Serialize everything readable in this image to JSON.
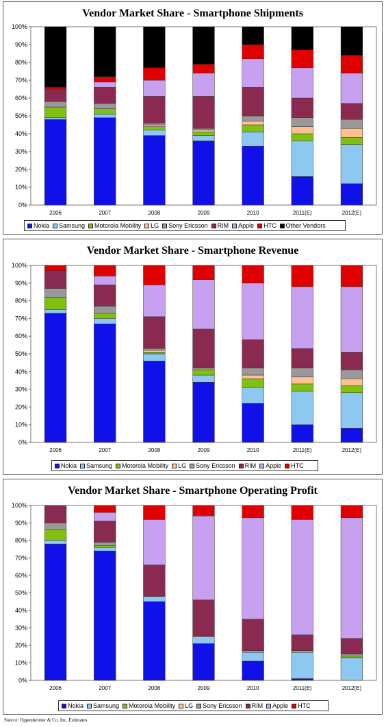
{
  "colors": {
    "Nokia": "#1010e8",
    "Samsung": "#8ec8f0",
    "Motorola Mobility": "#80c010",
    "LG": "#ffc090",
    "Sony Ericsson": "#999999",
    "RIM": "#8b2a50",
    "Apple": "#c8a0f0",
    "HTC": "#e00000",
    "Other Vendors": "#000000"
  },
  "source": "Source: Oppenheimer & Co. Inc. Estimates",
  "chart_data": [
    {
      "type": "bar",
      "stacked": true,
      "title": "Vendor Market Share - Smartphone Shipments",
      "categories": [
        "2006",
        "2007",
        "2008",
        "2009",
        "2010",
        "2011(E)",
        "2012(E)"
      ],
      "yticks": [
        "0%",
        "10%",
        "20%",
        "30%",
        "40%",
        "50%",
        "60%",
        "70%",
        "80%",
        "90%",
        "100%"
      ],
      "ylim": [
        0,
        100
      ],
      "legend_position": "bottom",
      "series": [
        {
          "name": "Nokia",
          "values": [
            48,
            49,
            39,
            36,
            33,
            16,
            12
          ]
        },
        {
          "name": "Samsung",
          "values": [
            1,
            2,
            3,
            3,
            8,
            20,
            22
          ]
        },
        {
          "name": "Motorola Mobility",
          "values": [
            6,
            3,
            2,
            2,
            4,
            4,
            4
          ]
        },
        {
          "name": "LG",
          "values": [
            0,
            0,
            1,
            1,
            2,
            4,
            5
          ]
        },
        {
          "name": "Sony Ericsson",
          "values": [
            3,
            3,
            1,
            1,
            3,
            5,
            5
          ]
        },
        {
          "name": "RIM",
          "values": [
            7,
            9,
            15,
            18,
            16,
            11,
            9
          ]
        },
        {
          "name": "Apple",
          "values": [
            0,
            3,
            9,
            13,
            16,
            17,
            17
          ]
        },
        {
          "name": "HTC",
          "values": [
            1,
            3,
            7,
            5,
            8,
            10,
            10
          ]
        },
        {
          "name": "Other Vendors",
          "values": [
            34,
            28,
            23,
            21,
            10,
            13,
            16
          ]
        }
      ]
    },
    {
      "type": "bar",
      "stacked": true,
      "title": "Vendor Market Share - Smartphone Revenue",
      "categories": [
        "2006",
        "2007",
        "2008",
        "2009",
        "2010",
        "2011(E)",
        "2012(E)"
      ],
      "yticks": [
        "0%",
        "10%",
        "20%",
        "30%",
        "40%",
        "50%",
        "60%",
        "70%",
        "80%",
        "90%",
        "100%"
      ],
      "ylim": [
        0,
        100
      ],
      "legend_position": "bottom",
      "series": [
        {
          "name": "Nokia",
          "values": [
            73,
            67,
            46,
            34,
            22,
            10,
            8
          ]
        },
        {
          "name": "Samsung",
          "values": [
            2,
            3,
            4,
            4,
            9,
            19,
            20
          ]
        },
        {
          "name": "Motorola Mobility",
          "values": [
            7,
            3,
            1,
            3,
            5,
            4,
            4
          ]
        },
        {
          "name": "LG",
          "values": [
            0,
            0,
            1,
            0,
            2,
            4,
            4
          ]
        },
        {
          "name": "Sony Ericsson",
          "values": [
            5,
            4,
            1,
            1,
            4,
            5,
            5
          ]
        },
        {
          "name": "RIM",
          "values": [
            10,
            12,
            18,
            22,
            16,
            11,
            10
          ]
        },
        {
          "name": "Apple",
          "values": [
            0,
            5,
            18,
            28,
            32,
            35,
            37
          ]
        },
        {
          "name": "HTC",
          "values": [
            3,
            6,
            11,
            8,
            10,
            12,
            12
          ]
        }
      ]
    },
    {
      "type": "bar",
      "stacked": true,
      "title": "Vendor Market Share - Smartphone Operating Profit",
      "categories": [
        "2006",
        "2007",
        "2008",
        "2009",
        "2010",
        "2011(E)",
        "2012(E)"
      ],
      "yticks": [
        "0%",
        "10%",
        "20%",
        "30%",
        "40%",
        "50%",
        "60%",
        "70%",
        "80%",
        "90%",
        "100%"
      ],
      "ylim": [
        0,
        100
      ],
      "legend_position": "bottom",
      "series": [
        {
          "name": "Nokia",
          "values": [
            78,
            74,
            45,
            21,
            11,
            1,
            0
          ]
        },
        {
          "name": "Samsung",
          "values": [
            2,
            2,
            3,
            4,
            5,
            15,
            13
          ]
        },
        {
          "name": "Motorola Mobility",
          "values": [
            6,
            1,
            0,
            0,
            0,
            1,
            1
          ]
        },
        {
          "name": "LG",
          "values": [
            0,
            0,
            0,
            0,
            0,
            0,
            0
          ]
        },
        {
          "name": "Sony Ericsson",
          "values": [
            4,
            2,
            0,
            0,
            1,
            0,
            1
          ]
        },
        {
          "name": "RIM",
          "values": [
            10,
            12,
            18,
            21,
            18,
            9,
            9
          ]
        },
        {
          "name": "Apple",
          "values": [
            0,
            5,
            26,
            48,
            58,
            66,
            69
          ]
        },
        {
          "name": "HTC",
          "values": [
            0,
            4,
            8,
            6,
            7,
            8,
            7
          ]
        }
      ]
    }
  ]
}
